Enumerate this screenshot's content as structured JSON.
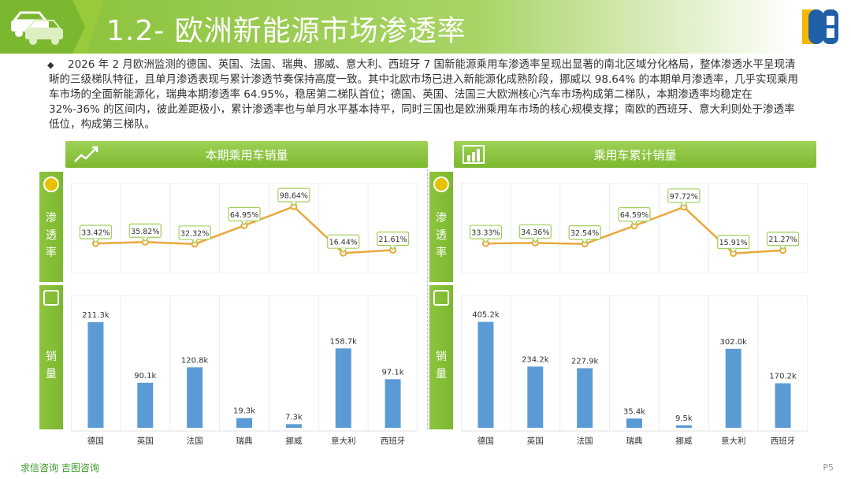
{
  "header": {
    "title": "1.2- 欧洲新能源市场渗透率"
  },
  "intro": {
    "text": "2026 年 2 月欧洲监测的德国、英国、法国、瑞典、挪威、意大利、西班牙 7 国新能源乘用车渗透率呈现出显著的南北区域分化格局，整体渗透水平呈现清晰的三级梯队特征，且单月渗透表现与累计渗透节奏保持高度一致。其中北欧市场已进入新能源化成熟阶段，挪威以 98.64% 的本期单月渗透率，几乎实现乘用车市场的全面新能源化，瑞典本期渗透率 64.95%，稳居第二梯队首位；德国、英国、法国三大欧洲核心汽车市场构成第二梯队，本期渗透率均稳定在 32%-36% 的区间内，彼此差距极小，累计渗透率也与单月水平基本持平，同时三国也是欧洲乘用车市场的核心规模支撑；南欧的西班牙、意大利则处于渗透率低位，构成第三梯队。"
  },
  "panels": {
    "left_title": "本期乘用车销量",
    "right_title": "乘用车累计销量",
    "tab_penetration": [
      "渗",
      "透",
      "率"
    ],
    "tab_sales": [
      "销",
      "量"
    ]
  },
  "footer": {
    "left": "求信咨询  吉图咨询",
    "right": "P5"
  },
  "colors": {
    "accent_green": "#7cb82f",
    "bar_blue": "#5b9bd5",
    "line_orange": "#e8a93b"
  },
  "chart_data": [
    {
      "type": "line",
      "title": "本期乘用车销量 - 渗透率",
      "categories": [
        "德国",
        "英国",
        "法国",
        "瑞典",
        "挪威",
        "意大利",
        "西班牙"
      ],
      "values": [
        33.42,
        35.82,
        32.32,
        64.95,
        98.64,
        16.44,
        21.61
      ],
      "labels": [
        "33.42%",
        "35.82%",
        "32.32%",
        "64.95%",
        "98.64%",
        "16.44%",
        "21.61%"
      ],
      "ylim": [
        0,
        110
      ]
    },
    {
      "type": "bar",
      "title": "本期乘用车销量 - 销量",
      "categories": [
        "德国",
        "英国",
        "法国",
        "瑞典",
        "挪威",
        "意大利",
        "西班牙"
      ],
      "values": [
        211.3,
        90.1,
        120.8,
        19.3,
        7.3,
        158.7,
        97.1
      ],
      "labels": [
        "211.3k",
        "90.1k",
        "120.8k",
        "19.3k",
        "7.3k",
        "158.7k",
        "97.1k"
      ],
      "ylim": [
        0,
        230
      ]
    },
    {
      "type": "line",
      "title": "乘用车累计销量 - 渗透率",
      "categories": [
        "德国",
        "英国",
        "法国",
        "瑞典",
        "挪威",
        "意大利",
        "西班牙"
      ],
      "values": [
        33.33,
        34.36,
        32.54,
        64.59,
        97.72,
        15.91,
        21.27
      ],
      "labels": [
        "33.33%",
        "34.36%",
        "32.54%",
        "64.59%",
        "97.72%",
        "15.91%",
        "21.27%"
      ],
      "ylim": [
        0,
        110
      ]
    },
    {
      "type": "bar",
      "title": "乘用车累计销量 - 销量",
      "categories": [
        "德国",
        "英国",
        "法国",
        "瑞典",
        "挪威",
        "意大利",
        "西班牙"
      ],
      "values": [
        405.2,
        234.2,
        227.9,
        35.4,
        9.5,
        302.0,
        170.2
      ],
      "labels": [
        "405.2k",
        "234.2k",
        "227.9k",
        "35.4k",
        "9.5k",
        "302.0k",
        "170.2k"
      ],
      "ylim": [
        0,
        440
      ]
    }
  ]
}
